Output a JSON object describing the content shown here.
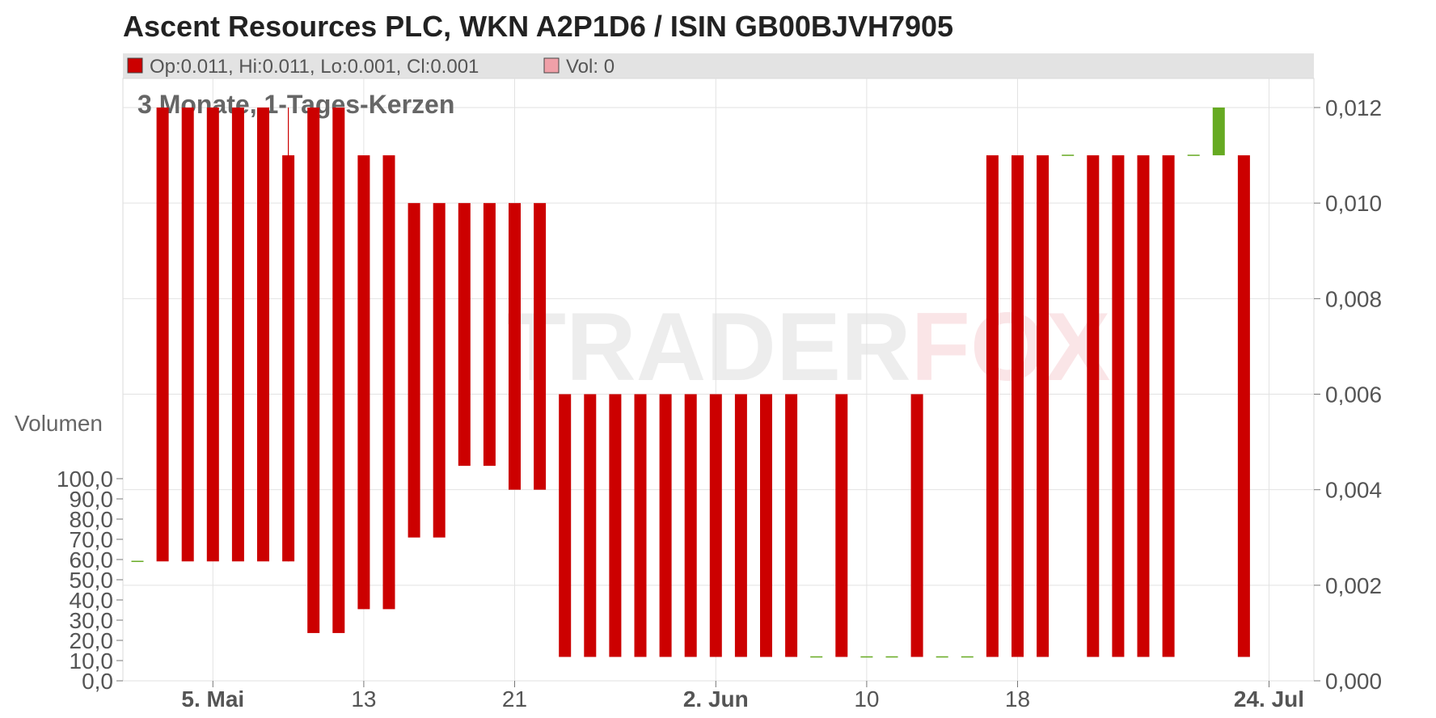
{
  "colors": {
    "down": "#cc0000",
    "up": "#66aa22",
    "grid": "#e2e2e2",
    "legend_bg": "#e3e3e3",
    "axis_text": "#555555"
  },
  "chart_data": {
    "type": "candlestick",
    "title": "Ascent Resources PLC, WKN A2P1D6 / ISIN GB00BJVH7905",
    "subtitle": "3 Monate, 1-Tages-Kerzen",
    "legend": {
      "ohlc": "Op:0.011, Hi:0.011, Lo:0.001, Cl:0.001",
      "volume": "Vol: 0"
    },
    "watermark": "TRADERFOX",
    "price_axis": {
      "ticks": [
        "0,000",
        "0,002",
        "0,004",
        "0,006",
        "0,008",
        "0,010",
        "0,012"
      ],
      "range": [
        0,
        0.012
      ]
    },
    "volume_axis": {
      "label": "Volumen",
      "ticks": [
        "0,0",
        "10,0",
        "20,0",
        "30,0",
        "40,0",
        "50,0",
        "60,0",
        "70,0",
        "80,0",
        "90,0",
        "100,0"
      ],
      "range": [
        0,
        100
      ]
    },
    "x_ticks": [
      {
        "label": "5. Mai",
        "slot": 3,
        "bold": true
      },
      {
        "label": "13",
        "slot": 9,
        "bold": false
      },
      {
        "label": "21",
        "slot": 15,
        "bold": false
      },
      {
        "label": "2. Jun",
        "slot": 23,
        "bold": true
      },
      {
        "label": "10",
        "slot": 29,
        "bold": false
      },
      {
        "label": "18",
        "slot": 35,
        "bold": false
      },
      {
        "label": "24. Jul",
        "slot": 45,
        "bold": true
      }
    ],
    "candles": [
      {
        "slot": 0,
        "open": 0.0025,
        "high": 0.0025,
        "low": 0.0025,
        "close": 0.0025
      },
      {
        "slot": 1,
        "open": 0.012,
        "high": 0.012,
        "low": 0.0025,
        "close": 0.0025
      },
      {
        "slot": 2,
        "open": 0.012,
        "high": 0.012,
        "low": 0.0025,
        "close": 0.0025
      },
      {
        "slot": 3,
        "open": 0.012,
        "high": 0.012,
        "low": 0.0025,
        "close": 0.0025
      },
      {
        "slot": 4,
        "open": 0.012,
        "high": 0.012,
        "low": 0.0025,
        "close": 0.0025
      },
      {
        "slot": 5,
        "open": 0.012,
        "high": 0.012,
        "low": 0.0025,
        "close": 0.0025
      },
      {
        "slot": 6,
        "open": 0.011,
        "high": 0.012,
        "low": 0.0025,
        "close": 0.0025
      },
      {
        "slot": 7,
        "open": 0.012,
        "high": 0.012,
        "low": 0.001,
        "close": 0.001
      },
      {
        "slot": 8,
        "open": 0.012,
        "high": 0.012,
        "low": 0.001,
        "close": 0.001
      },
      {
        "slot": 9,
        "open": 0.011,
        "high": 0.011,
        "low": 0.0015,
        "close": 0.0015
      },
      {
        "slot": 10,
        "open": 0.011,
        "high": 0.011,
        "low": 0.0015,
        "close": 0.0015
      },
      {
        "slot": 11,
        "open": 0.01,
        "high": 0.01,
        "low": 0.003,
        "close": 0.003
      },
      {
        "slot": 12,
        "open": 0.01,
        "high": 0.01,
        "low": 0.003,
        "close": 0.003
      },
      {
        "slot": 13,
        "open": 0.01,
        "high": 0.01,
        "low": 0.0045,
        "close": 0.0045
      },
      {
        "slot": 14,
        "open": 0.01,
        "high": 0.01,
        "low": 0.0045,
        "close": 0.0045
      },
      {
        "slot": 15,
        "open": 0.01,
        "high": 0.01,
        "low": 0.004,
        "close": 0.004
      },
      {
        "slot": 16,
        "open": 0.01,
        "high": 0.01,
        "low": 0.004,
        "close": 0.004
      },
      {
        "slot": 17,
        "open": 0.006,
        "high": 0.006,
        "low": 0.0005,
        "close": 0.0005
      },
      {
        "slot": 18,
        "open": 0.006,
        "high": 0.006,
        "low": 0.0005,
        "close": 0.0005
      },
      {
        "slot": 19,
        "open": 0.006,
        "high": 0.006,
        "low": 0.0005,
        "close": 0.0005
      },
      {
        "slot": 20,
        "open": 0.006,
        "high": 0.006,
        "low": 0.0005,
        "close": 0.0005
      },
      {
        "slot": 21,
        "open": 0.006,
        "high": 0.006,
        "low": 0.0005,
        "close": 0.0005
      },
      {
        "slot": 22,
        "open": 0.006,
        "high": 0.006,
        "low": 0.0005,
        "close": 0.0005
      },
      {
        "slot": 23,
        "open": 0.006,
        "high": 0.006,
        "low": 0.0005,
        "close": 0.0005
      },
      {
        "slot": 24,
        "open": 0.006,
        "high": 0.006,
        "low": 0.0005,
        "close": 0.0005
      },
      {
        "slot": 25,
        "open": 0.006,
        "high": 0.006,
        "low": 0.0005,
        "close": 0.0005
      },
      {
        "slot": 26,
        "open": 0.006,
        "high": 0.006,
        "low": 0.0005,
        "close": 0.0005
      },
      {
        "slot": 27,
        "open": 0.0005,
        "high": 0.0005,
        "low": 0.0005,
        "close": 0.0005
      },
      {
        "slot": 28,
        "open": 0.006,
        "high": 0.006,
        "low": 0.0005,
        "close": 0.0005
      },
      {
        "slot": 29,
        "open": 0.0005,
        "high": 0.0005,
        "low": 0.0005,
        "close": 0.0005
      },
      {
        "slot": 30,
        "open": 0.0005,
        "high": 0.0005,
        "low": 0.0005,
        "close": 0.0005
      },
      {
        "slot": 31,
        "open": 0.006,
        "high": 0.006,
        "low": 0.0005,
        "close": 0.0005
      },
      {
        "slot": 32,
        "open": 0.0005,
        "high": 0.0005,
        "low": 0.0005,
        "close": 0.0005
      },
      {
        "slot": 33,
        "open": 0.0005,
        "high": 0.0005,
        "low": 0.0005,
        "close": 0.0005
      },
      {
        "slot": 34,
        "open": 0.011,
        "high": 0.011,
        "low": 0.0005,
        "close": 0.0005
      },
      {
        "slot": 35,
        "open": 0.011,
        "high": 0.011,
        "low": 0.0005,
        "close": 0.0005
      },
      {
        "slot": 36,
        "open": 0.011,
        "high": 0.011,
        "low": 0.0005,
        "close": 0.0005
      },
      {
        "slot": 37,
        "open": 0.011,
        "high": 0.011,
        "low": 0.011,
        "close": 0.011
      },
      {
        "slot": 38,
        "open": 0.011,
        "high": 0.011,
        "low": 0.0005,
        "close": 0.0005
      },
      {
        "slot": 39,
        "open": 0.011,
        "high": 0.011,
        "low": 0.0005,
        "close": 0.0005
      },
      {
        "slot": 40,
        "open": 0.011,
        "high": 0.011,
        "low": 0.0005,
        "close": 0.0005
      },
      {
        "slot": 41,
        "open": 0.011,
        "high": 0.011,
        "low": 0.0005,
        "close": 0.0005
      },
      {
        "slot": 42,
        "open": 0.011,
        "high": 0.011,
        "low": 0.011,
        "close": 0.011
      },
      {
        "slot": 43,
        "open": 0.011,
        "high": 0.012,
        "low": 0.011,
        "close": 0.012
      },
      {
        "slot": 44,
        "open": 0.011,
        "high": 0.011,
        "low": 0.0005,
        "close": 0.0005
      }
    ]
  }
}
